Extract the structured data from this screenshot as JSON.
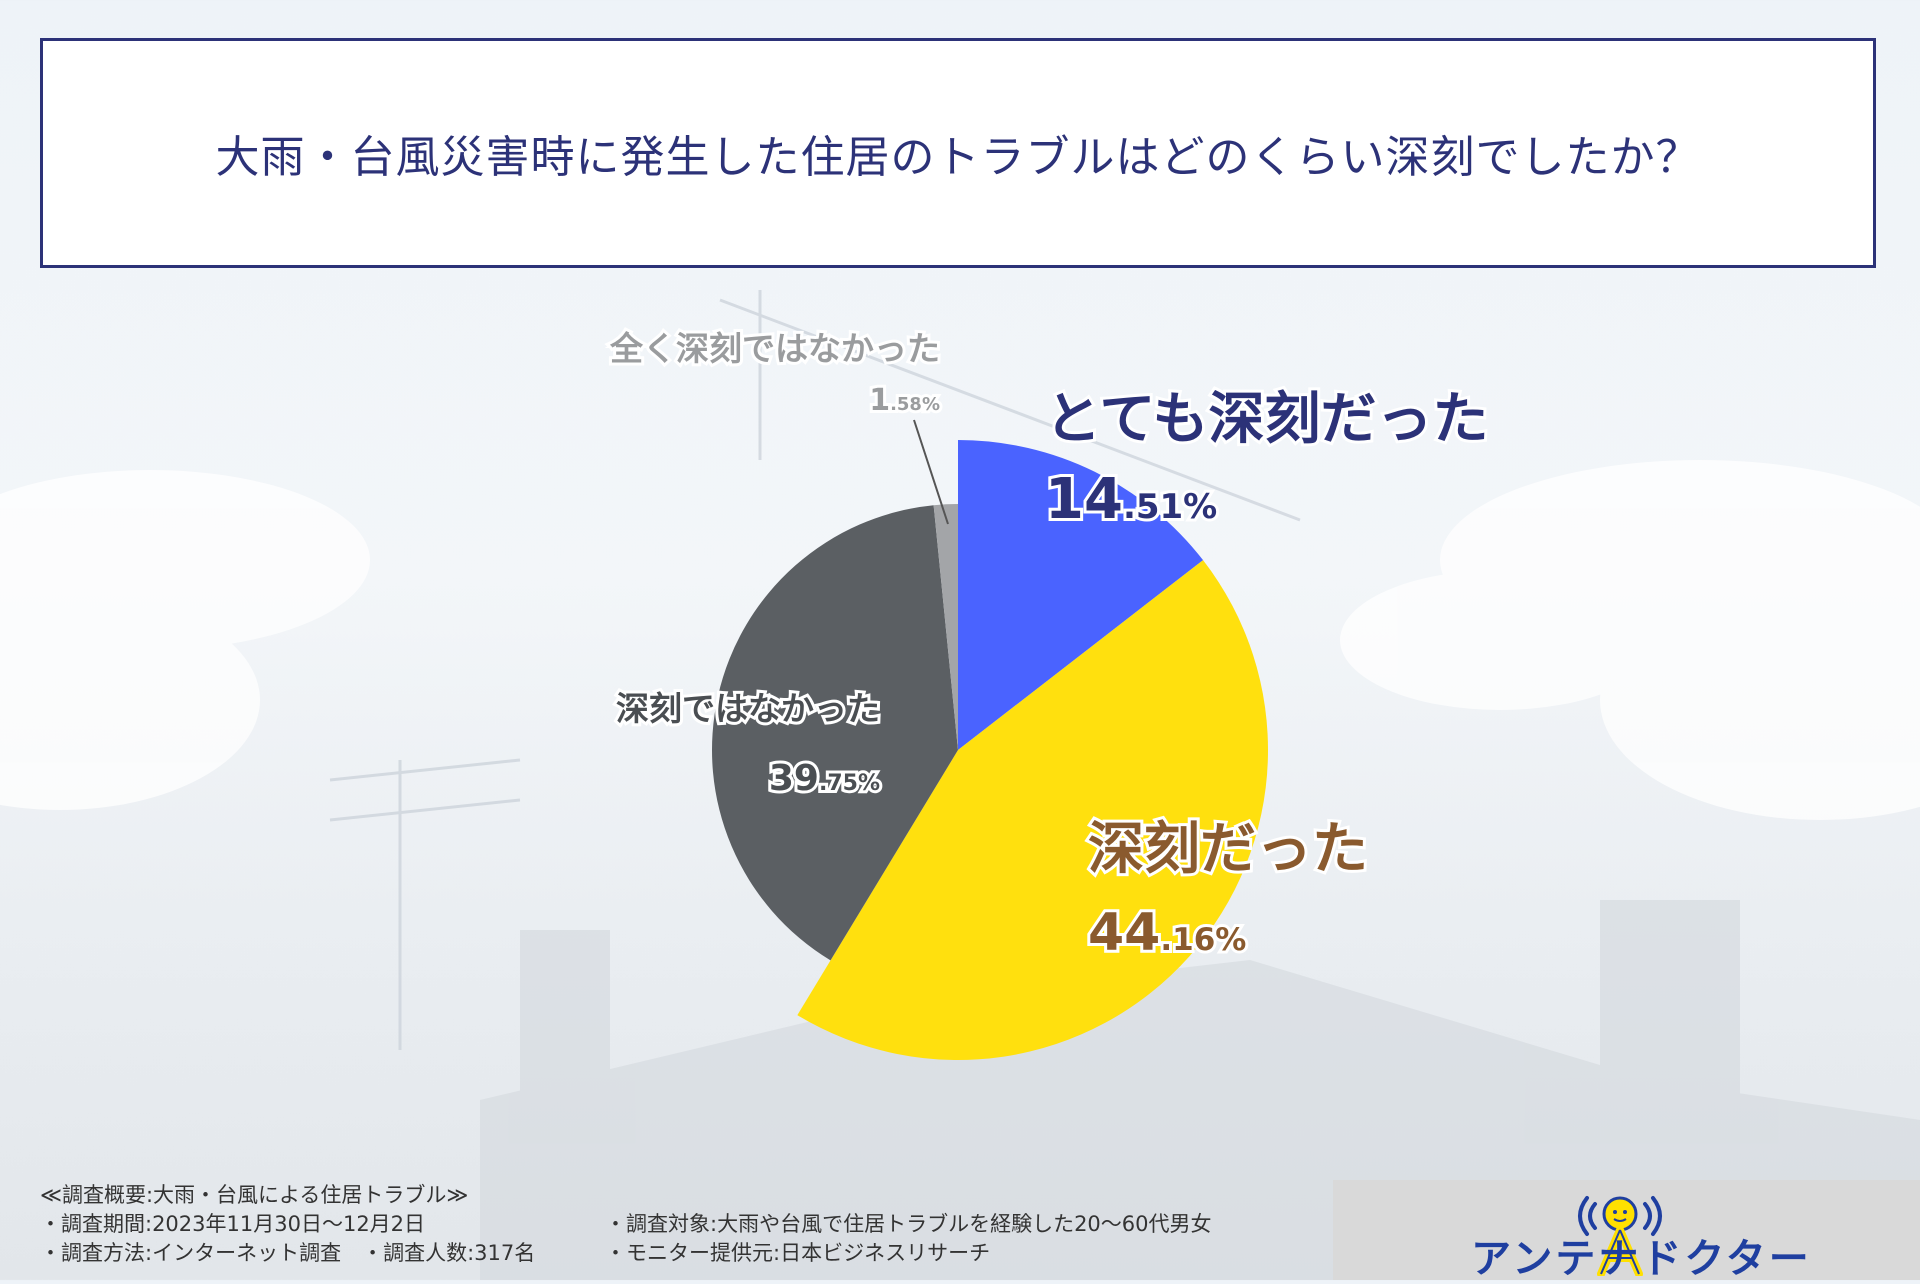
{
  "title": "大雨・台風災害時に発生した住居のトラブルはどのくらい深刻でしたか？",
  "chart_data": {
    "type": "pie",
    "slices": [
      {
        "label": "とても深刻だった",
        "int": "14",
        "dec": ".51",
        "pct": "%",
        "value": 14.51,
        "color": "#4a63ff"
      },
      {
        "label": "深刻だった",
        "int": "44",
        "dec": ".16",
        "pct": "%",
        "value": 44.16,
        "color": "#ffe00e"
      },
      {
        "label": "深刻ではなかった",
        "int": "39",
        "dec": ".75",
        "pct": "%",
        "value": 39.75,
        "color": "#5b5f63"
      },
      {
        "label": "全く深刻ではなかった",
        "int": "1",
        "dec": ".58",
        "pct": "%",
        "value": 1.58,
        "color": "#a3a5a8"
      }
    ]
  },
  "footer": {
    "lines_left": [
      "≪調査概要:大雨・台風による住居トラブル≫",
      "・調査期間:2023年11月30日〜12月2日",
      "・調査方法:インターネット調査　・調査人数:317名"
    ],
    "lines_right": [
      "・調査対象:大雨や台風で住居トラブルを経験した20〜60代男女",
      "・モニター提供元:日本ビジネスリサーチ"
    ]
  },
  "logo": {
    "text": "アンテナドクター",
    "colors": {
      "blue": "#1f3fa0",
      "yellow": "#ffe000"
    }
  }
}
